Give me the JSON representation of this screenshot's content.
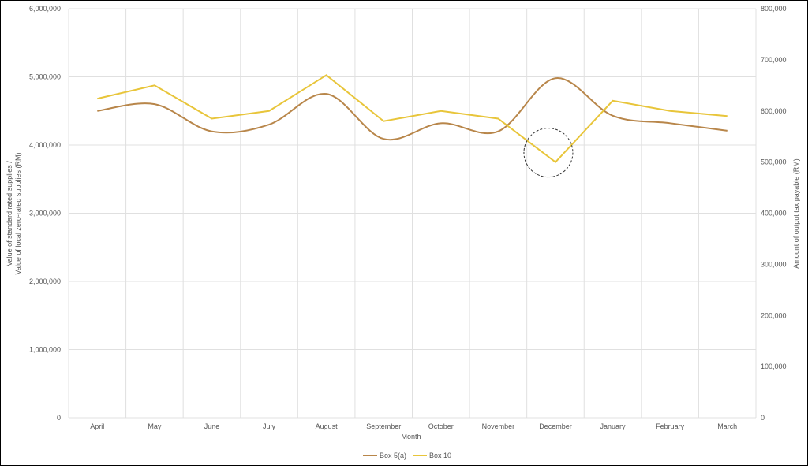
{
  "chart_data": {
    "type": "line",
    "title": "",
    "xlabel": "Month",
    "ylabel": "Value of standard rated supplies / Value of local zero-rated supplies (RM)",
    "ylabel_lines": [
      "Value of standard rated supplies /",
      "Value of local zero-rated supplies (RM)"
    ],
    "y2label": "Amount of output tax payable (RM)",
    "ylim": [
      0,
      6000000
    ],
    "y2lim": [
      0,
      800000
    ],
    "yticks": [
      "0",
      "1,000,000",
      "2,000,000",
      "3,000,000",
      "4,000,000",
      "5,000,000",
      "6,000,000"
    ],
    "y2ticks": [
      "0",
      "100,000",
      "200,000",
      "300,000",
      "400,000",
      "500,000",
      "600,000",
      "700,000",
      "800,000"
    ],
    "grid": true,
    "legend_position": "bottom",
    "categories": [
      "April",
      "May",
      "June",
      "July",
      "August",
      "September",
      "October",
      "November",
      "December",
      "January",
      "February",
      "March"
    ],
    "series": [
      {
        "name": "Box 5(a)",
        "axis": "left",
        "smooth": true,
        "color": "#b8864a",
        "values": [
          4500000,
          4600000,
          4200000,
          4300000,
          4750000,
          4090000,
          4320000,
          4200000,
          4980000,
          4430000,
          4320000,
          4210000
        ]
      },
      {
        "name": "Box 10",
        "axis": "right",
        "smooth": false,
        "color": "#e8c53a",
        "values": [
          624000,
          650000,
          585000,
          600000,
          670000,
          580000,
          600000,
          585000,
          500000,
          620000,
          600000,
          590000
        ]
      }
    ],
    "annotation": {
      "shape": "dashed-circle",
      "category": "December",
      "series": "Box 10"
    }
  }
}
